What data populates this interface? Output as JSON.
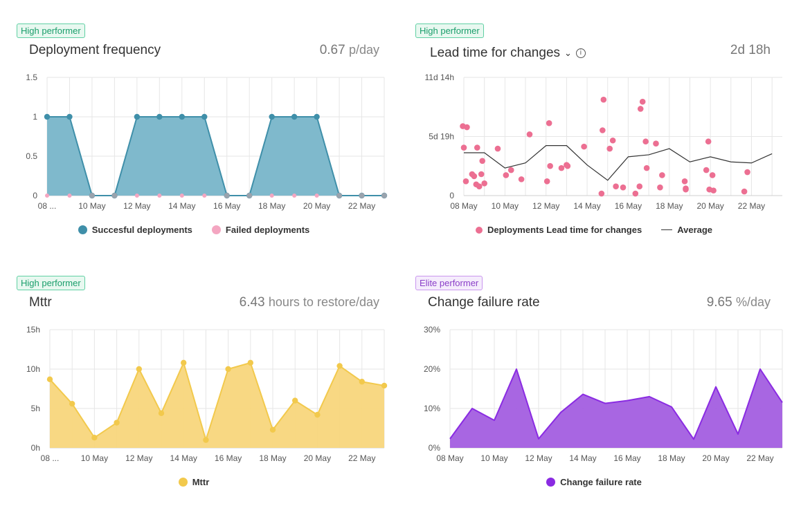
{
  "panels": {
    "deployment": {
      "badge": "High performer",
      "title": "Deployment frequency",
      "value": "0.67",
      "unit": "p/day",
      "legend": [
        "Succesful deployments",
        "Failed deployments"
      ]
    },
    "leadtime": {
      "badge": "High performer",
      "title": "Lead time for changes",
      "value": "2d 18h",
      "unit": "",
      "legend": [
        "Deployments Lead time for changes",
        "Average"
      ]
    },
    "mttr": {
      "badge": "High performer",
      "title": "Mttr",
      "value": "6.43",
      "unit": "hours to restore/day",
      "legend": [
        "Mttr"
      ]
    },
    "cfr": {
      "badge": "Elite performer",
      "title": "Change failure rate",
      "value": "9.65",
      "unit": "%/day",
      "legend": [
        "Change failure rate"
      ]
    }
  },
  "colors": {
    "deploy": "#3f8fa9",
    "deploy_fill": "#7fb9cc",
    "failed": "#f4a6c1",
    "lead_point": "#ec6f92",
    "mttr": "#f2c94c",
    "mttr_fill": "#f8d67c",
    "cfr": "#8a2be2",
    "cfr_fill": "#a35ee0"
  },
  "chart_data": [
    {
      "id": "deployment",
      "type": "area",
      "title": "Deployment frequency",
      "x_ticks": [
        "08 ...",
        "10 May",
        "12 May",
        "14 May",
        "16 May",
        "18 May",
        "20 May",
        "22 May"
      ],
      "y_ticks": [
        "0",
        "0.5",
        "1",
        "1.5"
      ],
      "ylim": [
        0,
        1.5
      ],
      "xlim": [
        0,
        15
      ],
      "series": [
        {
          "name": "Succesful deployments",
          "x": [
            0,
            1,
            2,
            3,
            4,
            5,
            6,
            7,
            8,
            9,
            10,
            11,
            12,
            13,
            14,
            15
          ],
          "values": [
            1,
            1,
            0,
            0,
            1,
            1,
            1,
            1,
            0,
            0,
            1,
            1,
            1,
            0,
            0,
            0
          ]
        },
        {
          "name": "Failed deployments",
          "x": [
            0,
            1,
            2,
            3,
            4,
            5,
            6,
            7,
            8,
            9,
            10,
            11,
            12,
            13,
            14,
            15
          ],
          "values": [
            0,
            0,
            0,
            0,
            0,
            0,
            0,
            0,
            0,
            0,
            0,
            0,
            0,
            0,
            0,
            0
          ]
        }
      ]
    },
    {
      "id": "leadtime",
      "type": "scatter",
      "title": "Lead time for changes",
      "x_ticks": [
        "08 May",
        "10 May",
        "12 May",
        "14 May",
        "16 May",
        "18 May",
        "20 May",
        "22 May"
      ],
      "y_ticks": [
        "0",
        "5d 19h",
        "11d 14h"
      ],
      "ylim": [
        0,
        11.58
      ],
      "xlim": [
        0,
        15.5
      ],
      "series": [
        {
          "name": "Deployments Lead time for changes",
          "points": [
            [
              -0.05,
              6.8
            ],
            [
              0.15,
              6.7
            ],
            [
              0.0,
              4.7
            ],
            [
              0.1,
              1.4
            ],
            [
              0.4,
              2.1
            ],
            [
              0.5,
              1.9
            ],
            [
              0.6,
              1.1
            ],
            [
              0.65,
              4.7
            ],
            [
              0.75,
              0.9
            ],
            [
              0.85,
              2.1
            ],
            [
              0.9,
              3.4
            ],
            [
              1.0,
              1.2
            ],
            [
              1.65,
              4.6
            ],
            [
              2.05,
              2.0
            ],
            [
              2.3,
              2.5
            ],
            [
              2.8,
              1.6
            ],
            [
              3.2,
              6.0
            ],
            [
              4.05,
              1.4
            ],
            [
              4.15,
              7.1
            ],
            [
              4.2,
              2.9
            ],
            [
              4.75,
              2.7
            ],
            [
              5.0,
              3.0
            ],
            [
              5.05,
              2.9
            ],
            [
              5.85,
              4.8
            ],
            [
              6.7,
              0.2
            ],
            [
              6.75,
              6.4
            ],
            [
              6.8,
              9.4
            ],
            [
              7.1,
              4.6
            ],
            [
              7.25,
              5.4
            ],
            [
              7.4,
              0.9
            ],
            [
              7.75,
              0.8
            ],
            [
              8.35,
              0.2
            ],
            [
              8.55,
              0.9
            ],
            [
              8.6,
              8.5
            ],
            [
              8.7,
              9.2
            ],
            [
              8.85,
              5.3
            ],
            [
              8.9,
              2.7
            ],
            [
              9.35,
              5.1
            ],
            [
              9.55,
              0.8
            ],
            [
              9.65,
              2.0
            ],
            [
              10.75,
              1.4
            ],
            [
              10.8,
              0.7
            ],
            [
              10.8,
              0.6
            ],
            [
              11.8,
              2.5
            ],
            [
              11.9,
              5.3
            ],
            [
              11.95,
              0.6
            ],
            [
              12.1,
              2.0
            ],
            [
              12.15,
              0.5
            ],
            [
              13.65,
              0.4
            ],
            [
              13.8,
              2.3
            ]
          ]
        },
        {
          "name": "Average",
          "x": [
            0,
            1,
            2,
            3,
            4,
            5,
            6,
            7,
            8,
            9,
            10,
            11,
            12,
            13,
            14,
            15
          ],
          "values": [
            4.2,
            4.2,
            2.7,
            3.2,
            4.9,
            4.9,
            3.0,
            1.5,
            3.8,
            4.0,
            4.6,
            3.3,
            3.8,
            3.3,
            3.2,
            4.1
          ]
        }
      ]
    },
    {
      "id": "mttr",
      "type": "area",
      "title": "Mttr",
      "x_ticks": [
        "08 ...",
        "10 May",
        "12 May",
        "14 May",
        "16 May",
        "18 May",
        "20 May",
        "22 May"
      ],
      "y_ticks": [
        "0h",
        "5h",
        "10h",
        "15h"
      ],
      "ylim": [
        0,
        15
      ],
      "xlim": [
        0,
        15
      ],
      "series": [
        {
          "name": "Mttr",
          "x": [
            0,
            1,
            2,
            3,
            4,
            5,
            6,
            7,
            8,
            9,
            10,
            11,
            12,
            13,
            14,
            15
          ],
          "values": [
            8.7,
            5.6,
            1.3,
            3.2,
            10.0,
            4.4,
            10.8,
            1.0,
            10.0,
            10.8,
            2.3,
            6.0,
            4.2,
            10.4,
            8.4,
            7.9
          ]
        }
      ]
    },
    {
      "id": "cfr",
      "type": "area",
      "title": "Change failure rate",
      "x_ticks": [
        "08 May",
        "10 May",
        "12 May",
        "14 May",
        "16 May",
        "18 May",
        "20 May",
        "22 May"
      ],
      "y_ticks": [
        "0%",
        "10%",
        "20%",
        "30%"
      ],
      "ylim": [
        0,
        30
      ],
      "xlim": [
        0,
        15
      ],
      "series": [
        {
          "name": "Change failure rate",
          "x": [
            0,
            1,
            2,
            3,
            4,
            5,
            6,
            7,
            8,
            9,
            10,
            11,
            12,
            13,
            14,
            15
          ],
          "values": [
            2.3,
            10.0,
            7.0,
            20.0,
            2.3,
            9.0,
            13.6,
            11.3,
            12.0,
            13.0,
            10.4,
            2.2,
            15.5,
            3.5,
            20.0,
            11.5
          ]
        }
      ]
    }
  ]
}
